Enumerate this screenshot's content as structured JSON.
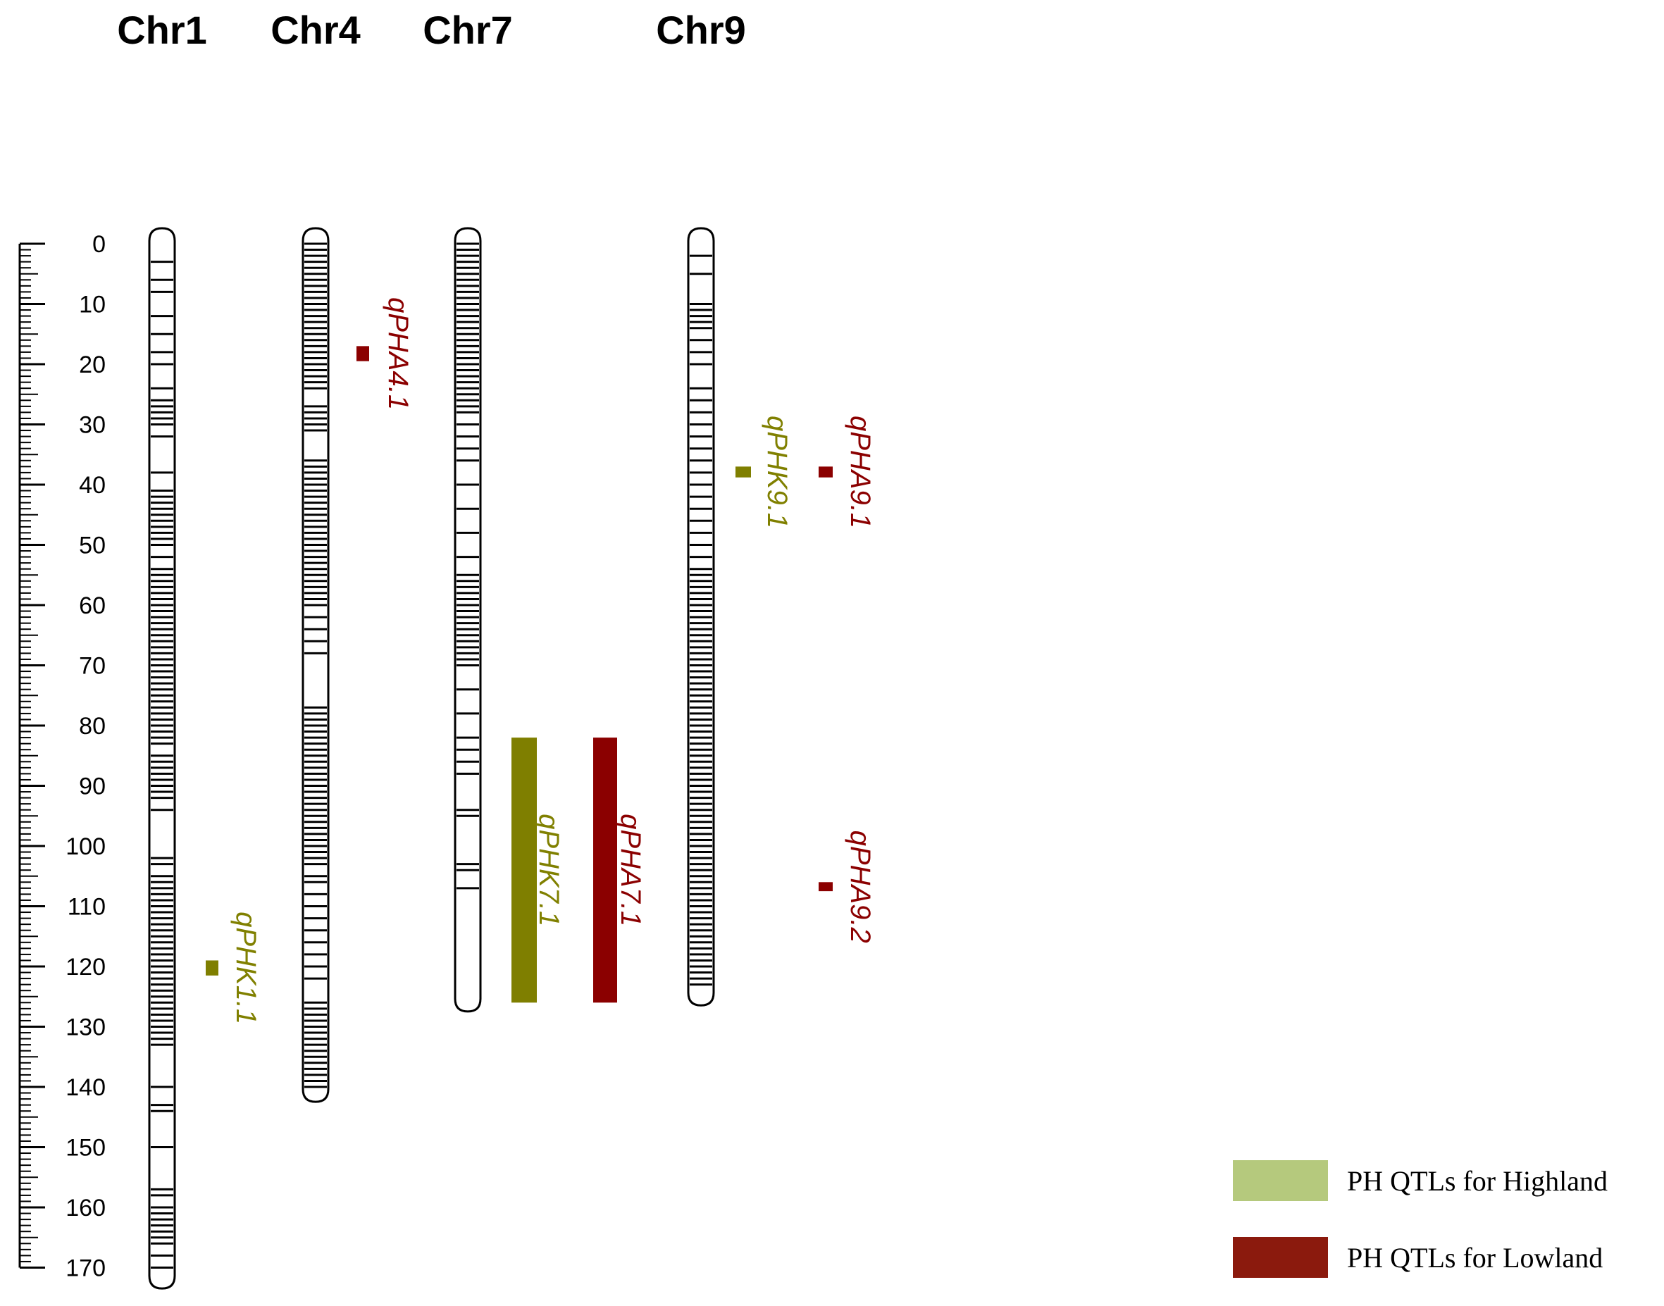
{
  "chart_data": {
    "type": "chromosome-map",
    "axis": {
      "min": 0,
      "max": 170,
      "major_step": 10,
      "minor_step": 1,
      "tick_labels": [
        "0",
        "10",
        "20",
        "30",
        "40",
        "50",
        "60",
        "70",
        "80",
        "90",
        "100",
        "110",
        "120",
        "130",
        "140",
        "150",
        "160",
        "170"
      ]
    },
    "chromosomes": [
      {
        "name": "Chr1",
        "start": 0,
        "end": 173,
        "markers": [
          3,
          6,
          8,
          12,
          15,
          18,
          20,
          24,
          26,
          27,
          28,
          29,
          30,
          32,
          38,
          41,
          42,
          43,
          44,
          45,
          46,
          47,
          48,
          49,
          50,
          52,
          54,
          55,
          56,
          57,
          58,
          59,
          60,
          61,
          62,
          63,
          64,
          65,
          66,
          67,
          68,
          69,
          70,
          71,
          72,
          73,
          74,
          75,
          76,
          77,
          78,
          79,
          80,
          81,
          82,
          83,
          85,
          86,
          87,
          88,
          89,
          90,
          91,
          92,
          94,
          102,
          103,
          105,
          106,
          107,
          108,
          109,
          110,
          111,
          112,
          113,
          114,
          115,
          116,
          117,
          118,
          119,
          120,
          121,
          122,
          123,
          124,
          125,
          126,
          127,
          128,
          129,
          130,
          131,
          132,
          133,
          140,
          143,
          144,
          150,
          157,
          158,
          160,
          161,
          162,
          163,
          164,
          165,
          166,
          168,
          170
        ]
      },
      {
        "name": "Chr4",
        "start": 0,
        "end": 142,
        "markers": [
          0,
          1,
          2,
          3,
          4,
          5,
          6,
          7,
          8,
          9,
          10,
          11,
          12,
          13,
          14,
          15,
          16,
          17,
          18,
          19,
          20,
          21,
          22,
          23,
          24,
          27,
          28,
          29,
          30,
          31,
          36,
          37,
          38,
          39,
          40,
          41,
          42,
          43,
          44,
          45,
          46,
          47,
          48,
          49,
          50,
          51,
          52,
          53,
          54,
          55,
          56,
          57,
          58,
          59,
          60,
          62,
          64,
          66,
          68,
          77,
          78,
          79,
          80,
          81,
          82,
          83,
          84,
          85,
          86,
          87,
          88,
          89,
          90,
          91,
          92,
          93,
          94,
          95,
          96,
          97,
          98,
          99,
          100,
          101,
          102,
          103,
          105,
          106,
          108,
          110,
          112,
          114,
          116,
          118,
          120,
          122,
          126,
          127,
          128,
          129,
          130,
          131,
          132,
          133,
          134,
          135,
          136,
          137,
          138,
          139,
          140
        ]
      },
      {
        "name": "Chr7",
        "start": 0,
        "end": 127,
        "markers": [
          0,
          1,
          2,
          3,
          4,
          5,
          6,
          7,
          8,
          9,
          10,
          11,
          12,
          13,
          14,
          15,
          16,
          17,
          18,
          19,
          20,
          21,
          22,
          23,
          24,
          25,
          26,
          27,
          28,
          30,
          32,
          34,
          36,
          40,
          44,
          48,
          52,
          55,
          56,
          57,
          58,
          59,
          60,
          61,
          62,
          63,
          64,
          65,
          66,
          67,
          68,
          69,
          70,
          74,
          78,
          82,
          84,
          86,
          88,
          94,
          95,
          103,
          104,
          107
        ]
      },
      {
        "name": "Chr9",
        "start": 0,
        "end": 126,
        "markers": [
          2,
          5,
          10,
          11,
          12,
          13,
          14,
          16,
          18,
          20,
          24,
          26,
          28,
          30,
          32,
          34,
          36,
          38,
          40,
          42,
          44,
          46,
          48,
          50,
          52,
          54,
          55,
          56,
          57,
          58,
          59,
          60,
          61,
          62,
          63,
          64,
          65,
          66,
          67,
          68,
          69,
          70,
          71,
          72,
          73,
          74,
          75,
          76,
          77,
          78,
          79,
          80,
          81,
          82,
          83,
          84,
          85,
          86,
          87,
          88,
          89,
          90,
          91,
          92,
          93,
          94,
          95,
          96,
          97,
          98,
          99,
          100,
          101,
          102,
          103,
          104,
          105,
          106,
          107,
          108,
          109,
          110,
          111,
          112,
          113,
          114,
          115,
          116,
          117,
          118,
          119,
          120,
          121,
          122,
          123
        ]
      }
    ],
    "qtls": [
      {
        "name": "qPHK1.1",
        "chromosome": "Chr1",
        "start": 119,
        "end": 121.5,
        "group": "Highland"
      },
      {
        "name": "qPHA4.1",
        "chromosome": "Chr4",
        "start": 17,
        "end": 19.5,
        "group": "Lowland"
      },
      {
        "name": "qPHK7.1",
        "chromosome": "Chr7",
        "start": 82,
        "end": 126,
        "group": "Highland"
      },
      {
        "name": "qPHA7.1",
        "chromosome": "Chr7",
        "start": 82,
        "end": 126,
        "group": "Lowland"
      },
      {
        "name": "qPHK9.1",
        "chromosome": "Chr9",
        "start": 37,
        "end": 38.8,
        "group": "Highland"
      },
      {
        "name": "qPHA9.1",
        "chromosome": "Chr9",
        "start": 37,
        "end": 38.8,
        "group": "Lowland"
      },
      {
        "name": "qPHA9.2",
        "chromosome": "Chr9",
        "start": 106,
        "end": 107.5,
        "group": "Lowland"
      }
    ],
    "colors": {
      "Highland_bar": "#7f7f00",
      "Lowland_bar": "#8b0000",
      "Highland_label": "#808000",
      "Lowland_label": "#8b0000",
      "Highland_legend": "#b5c97d",
      "Lowland_legend": "#8b1a0d"
    },
    "legend": {
      "placement": "bottom-right",
      "items": [
        {
          "label": "PH QTLs for Highland",
          "group": "Highland"
        },
        {
          "label": "PH QTLs for Lowland",
          "group": "Lowland"
        }
      ]
    }
  }
}
